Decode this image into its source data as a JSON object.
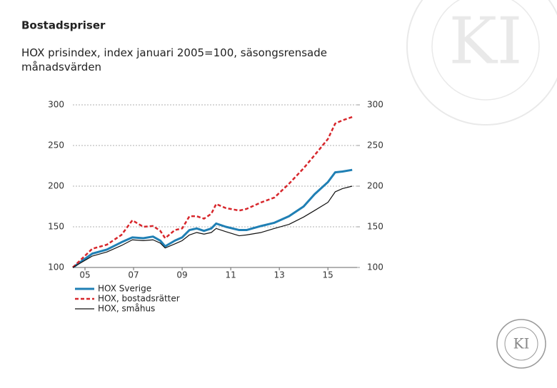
{
  "chart_data": {
    "type": "line",
    "title": "Bostadspriser",
    "subtitle": "HOX prisindex, index januari 2005=100, säsongsrensade månadsvärden",
    "x": [
      2005.0,
      2005.8,
      2006.4,
      2007.0,
      2007.45,
      2007.9,
      2008.3,
      2008.6,
      2008.8,
      2009.2,
      2009.5,
      2009.8,
      2010.1,
      2010.4,
      2010.7,
      2010.9,
      2011.3,
      2011.85,
      2012.15,
      2012.75,
      2013.3,
      2013.9,
      2014.5,
      2014.95,
      2015.5,
      2015.8,
      2016.1,
      2016.5
    ],
    "series": [
      {
        "name": "HOX Sverige",
        "color": "#1f7fb4",
        "style": "thick",
        "values": [
          100,
          117,
          122,
          131,
          137,
          136,
          138,
          133,
          126,
          133,
          137,
          146,
          148,
          145,
          148,
          154,
          150,
          146,
          146,
          151,
          155,
          163,
          175,
          190,
          205,
          217,
          218,
          220
        ]
      },
      {
        "name": "HOX, bostadsrätter",
        "color": "#d7262b",
        "style": "dashed",
        "values": [
          100,
          123,
          128,
          140,
          158,
          150,
          151,
          145,
          136,
          146,
          148,
          163,
          163,
          160,
          166,
          178,
          173,
          170,
          172,
          180,
          186,
          203,
          222,
          238,
          258,
          277,
          281,
          285
        ]
      },
      {
        "name": "HOX, småhus",
        "color": "#111111",
        "style": "thin",
        "values": [
          100,
          114,
          119,
          127,
          134,
          133,
          134,
          130,
          124,
          129,
          133,
          140,
          143,
          141,
          143,
          148,
          144,
          139,
          140,
          143,
          148,
          153,
          162,
          170,
          180,
          193,
          197,
          200
        ]
      }
    ],
    "xlim": [
      2005,
      2016.7
    ],
    "xticks": [
      {
        "value": 2005.5,
        "label": "05"
      },
      {
        "value": 2007.5,
        "label": "07"
      },
      {
        "value": 2009.5,
        "label": "09"
      },
      {
        "value": 2011.5,
        "label": "11"
      },
      {
        "value": 2013.5,
        "label": "13"
      },
      {
        "value": 2015.5,
        "label": "15"
      }
    ],
    "ylim": [
      100,
      300
    ],
    "yticks": [
      100,
      150,
      200,
      250,
      300
    ],
    "y2lim": [
      100,
      300
    ],
    "y2ticks": [
      100,
      150,
      200,
      250,
      300
    ],
    "grid": true
  },
  "logo": {
    "text": "KI"
  }
}
